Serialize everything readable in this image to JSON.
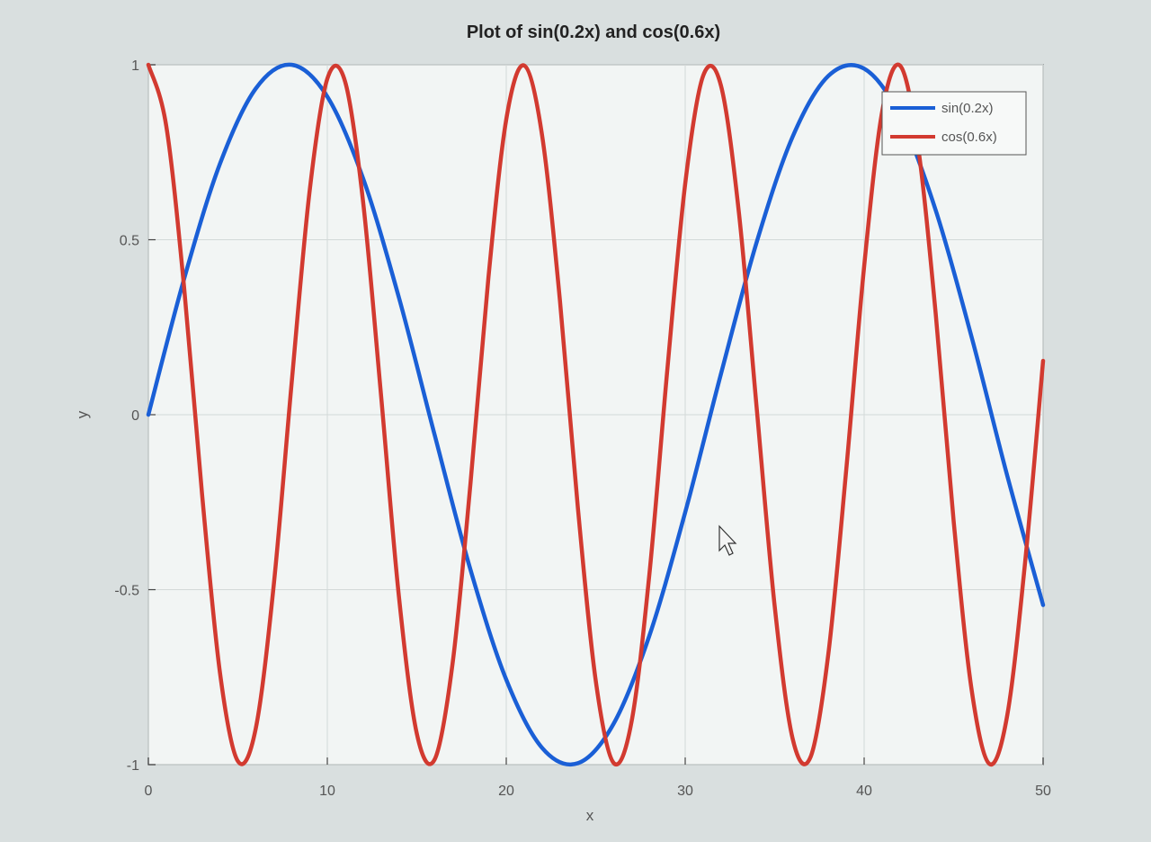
{
  "chart_data": {
    "type": "line",
    "title": "Plot of sin(0.2x) and cos(0.6x)",
    "xlabel": "x",
    "ylabel": "y",
    "xlim": [
      0,
      50
    ],
    "ylim": [
      -1,
      1
    ],
    "xticks": [
      0,
      10,
      20,
      30,
      40,
      50
    ],
    "yticks": [
      -1,
      -0.5,
      0,
      0.5,
      1
    ],
    "xtick_labels": [
      "0",
      "10",
      "20",
      "30",
      "40",
      "50"
    ],
    "ytick_labels": [
      "-1",
      "-0.5",
      "0",
      "0.5",
      "1"
    ],
    "grid": true,
    "legend_position": "top-right",
    "series": [
      {
        "name": "sin(0.2x)",
        "color": "#1a5fd6",
        "x": [
          0,
          2,
          4,
          6,
          8,
          10,
          12,
          14,
          16,
          18,
          20,
          22,
          24,
          26,
          28,
          30,
          32,
          34,
          36,
          38,
          40,
          42,
          44,
          46,
          48,
          50
        ],
        "values": [
          0,
          0.389,
          0.717,
          0.932,
          1.0,
          0.909,
          0.675,
          0.335,
          -0.058,
          -0.443,
          -0.757,
          -0.952,
          -0.996,
          -0.883,
          -0.631,
          -0.279,
          0.117,
          0.494,
          0.794,
          0.968,
          0.989,
          0.854,
          0.584,
          0.223,
          -0.175,
          -0.544
        ]
      },
      {
        "name": "cos(0.6x)",
        "color": "#d23a30",
        "x": [
          0,
          1,
          2,
          3,
          4,
          5,
          6,
          7,
          8,
          9,
          10,
          11,
          12,
          13,
          14,
          15,
          16,
          17,
          18,
          19,
          20,
          21,
          22,
          23,
          24,
          25,
          26,
          27,
          28,
          29,
          30,
          31,
          32,
          33,
          34,
          35,
          36,
          37,
          38,
          39,
          40,
          41,
          42,
          43,
          44,
          45,
          46,
          47,
          48,
          49,
          50
        ],
        "values": [
          1.0,
          0.825,
          0.362,
          -0.227,
          -0.737,
          -0.99,
          -0.897,
          -0.49,
          0.087,
          0.634,
          0.96,
          0.951,
          0.608,
          0.057,
          -0.519,
          -0.911,
          -0.985,
          -0.711,
          -0.197,
          0.39,
          0.844,
          0.998,
          0.799,
          0.326,
          -0.265,
          -0.76,
          -0.995,
          -0.878,
          -0.455,
          0.128,
          0.66,
          0.968,
          0.94,
          0.578,
          0.016,
          -0.547,
          -0.925,
          -0.979,
          -0.683,
          -0.157,
          0.424,
          0.864,
          0.998,
          0.771,
          0.288,
          -0.303,
          -0.784,
          -0.998,
          -0.858,
          -0.419,
          0.154
        ]
      }
    ]
  }
}
